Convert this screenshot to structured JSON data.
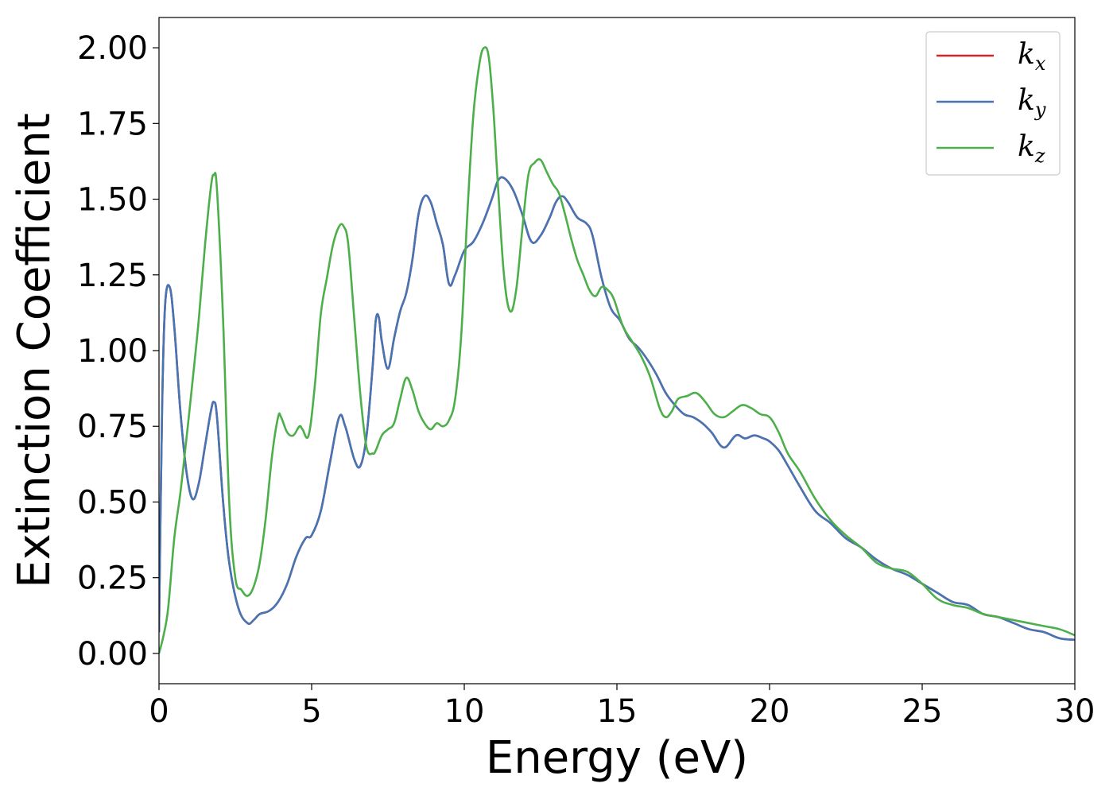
{
  "chart_data": {
    "type": "line",
    "title": "",
    "xlabel": "Energy (eV)",
    "ylabel": "Extinction Coefficient",
    "xlim": [
      0,
      30
    ],
    "ylim": [
      -0.1,
      2.1
    ],
    "xticks": [
      0,
      5,
      10,
      15,
      20,
      25,
      30
    ],
    "xtick_labels": [
      "0",
      "5",
      "10",
      "15",
      "20",
      "25",
      "30"
    ],
    "yticks": [
      0,
      0.25,
      0.5,
      0.75,
      1.0,
      1.25,
      1.5,
      1.75,
      2.0
    ],
    "ytick_labels": [
      "0.00",
      "0.25",
      "0.50",
      "0.75",
      "1.00",
      "1.25",
      "1.50",
      "1.75",
      "2.00"
    ],
    "grid": false,
    "legend_position": "top-right",
    "series": [
      {
        "name": "k_x",
        "label_base": "k",
        "label_sub": "x",
        "color": "#d62728",
        "x": [
          0,
          0.1,
          0.2,
          0.35,
          0.5,
          0.7,
          0.9,
          1.1,
          1.3,
          1.5,
          1.7,
          1.8,
          1.9,
          2.1,
          2.3,
          2.6,
          2.9,
          3.1,
          3.3,
          3.6,
          3.9,
          4.2,
          4.5,
          4.8,
          5.0,
          5.3,
          5.6,
          5.9,
          6.1,
          6.4,
          6.6,
          6.8,
          7.0,
          7.1,
          7.2,
          7.3,
          7.5,
          7.7,
          7.9,
          8.1,
          8.3,
          8.5,
          8.7,
          8.9,
          9.1,
          9.3,
          9.5,
          9.7,
          10.0,
          10.3,
          10.6,
          10.9,
          11.1,
          11.3,
          11.6,
          11.9,
          12.2,
          12.5,
          12.8,
          13.0,
          13.2,
          13.4,
          13.7,
          14.0,
          14.2,
          14.5,
          14.8,
          15.1,
          15.4,
          15.7,
          16.0,
          16.3,
          16.6,
          16.9,
          17.2,
          17.5,
          17.8,
          18.1,
          18.5,
          18.9,
          19.2,
          19.5,
          19.8,
          20.0,
          20.3,
          20.6,
          21.0,
          21.5,
          22.0,
          22.5,
          23.0,
          23.5,
          24.0,
          24.5,
          25.0,
          25.5,
          26.0,
          26.5,
          27.0,
          27.5,
          28.0,
          28.5,
          29.0,
          29.5,
          30.0
        ],
        "y": [
          0.07,
          0.8,
          1.15,
          1.21,
          1.08,
          0.8,
          0.6,
          0.51,
          0.56,
          0.68,
          0.8,
          0.83,
          0.78,
          0.5,
          0.3,
          0.15,
          0.1,
          0.11,
          0.13,
          0.14,
          0.17,
          0.23,
          0.32,
          0.38,
          0.39,
          0.47,
          0.63,
          0.78,
          0.75,
          0.64,
          0.62,
          0.72,
          0.95,
          1.1,
          1.11,
          1.03,
          0.94,
          1.04,
          1.13,
          1.19,
          1.3,
          1.45,
          1.51,
          1.49,
          1.42,
          1.35,
          1.22,
          1.25,
          1.33,
          1.36,
          1.42,
          1.5,
          1.56,
          1.57,
          1.53,
          1.45,
          1.36,
          1.38,
          1.44,
          1.49,
          1.51,
          1.49,
          1.44,
          1.42,
          1.38,
          1.24,
          1.14,
          1.1,
          1.04,
          1.01,
          0.97,
          0.92,
          0.86,
          0.82,
          0.79,
          0.78,
          0.76,
          0.73,
          0.68,
          0.72,
          0.71,
          0.72,
          0.71,
          0.7,
          0.67,
          0.62,
          0.55,
          0.47,
          0.43,
          0.38,
          0.35,
          0.31,
          0.28,
          0.26,
          0.23,
          0.2,
          0.17,
          0.16,
          0.13,
          0.12,
          0.1,
          0.08,
          0.07,
          0.05,
          0.045
        ]
      },
      {
        "name": "k_y",
        "label_base": "k",
        "label_sub": "y",
        "color": "#4575b4",
        "x": [
          0,
          0.1,
          0.2,
          0.35,
          0.5,
          0.7,
          0.9,
          1.1,
          1.3,
          1.5,
          1.7,
          1.8,
          1.9,
          2.1,
          2.3,
          2.6,
          2.9,
          3.1,
          3.3,
          3.6,
          3.9,
          4.2,
          4.5,
          4.8,
          5.0,
          5.3,
          5.6,
          5.9,
          6.1,
          6.4,
          6.6,
          6.8,
          7.0,
          7.1,
          7.2,
          7.3,
          7.5,
          7.7,
          7.9,
          8.1,
          8.3,
          8.5,
          8.7,
          8.9,
          9.1,
          9.3,
          9.5,
          9.7,
          10.0,
          10.3,
          10.6,
          10.9,
          11.1,
          11.3,
          11.6,
          11.9,
          12.2,
          12.5,
          12.8,
          13.0,
          13.2,
          13.4,
          13.7,
          14.0,
          14.2,
          14.5,
          14.8,
          15.1,
          15.4,
          15.7,
          16.0,
          16.3,
          16.6,
          16.9,
          17.2,
          17.5,
          17.8,
          18.1,
          18.5,
          18.9,
          19.2,
          19.5,
          19.8,
          20.0,
          20.3,
          20.6,
          21.0,
          21.5,
          22.0,
          22.5,
          23.0,
          23.5,
          24.0,
          24.5,
          25.0,
          25.5,
          26.0,
          26.5,
          27.0,
          27.5,
          28.0,
          28.5,
          29.0,
          29.5,
          30.0
        ],
        "y": [
          0.07,
          0.8,
          1.15,
          1.21,
          1.08,
          0.8,
          0.6,
          0.51,
          0.56,
          0.68,
          0.8,
          0.83,
          0.78,
          0.5,
          0.3,
          0.15,
          0.1,
          0.11,
          0.13,
          0.14,
          0.17,
          0.23,
          0.32,
          0.38,
          0.39,
          0.47,
          0.63,
          0.78,
          0.75,
          0.64,
          0.62,
          0.72,
          0.95,
          1.1,
          1.11,
          1.03,
          0.94,
          1.04,
          1.13,
          1.19,
          1.3,
          1.45,
          1.51,
          1.49,
          1.42,
          1.35,
          1.22,
          1.25,
          1.33,
          1.36,
          1.42,
          1.5,
          1.56,
          1.57,
          1.53,
          1.45,
          1.36,
          1.38,
          1.44,
          1.49,
          1.51,
          1.49,
          1.44,
          1.42,
          1.38,
          1.24,
          1.14,
          1.1,
          1.04,
          1.01,
          0.97,
          0.92,
          0.86,
          0.82,
          0.79,
          0.78,
          0.76,
          0.73,
          0.68,
          0.72,
          0.71,
          0.72,
          0.71,
          0.7,
          0.67,
          0.62,
          0.55,
          0.47,
          0.43,
          0.38,
          0.35,
          0.31,
          0.28,
          0.26,
          0.23,
          0.2,
          0.17,
          0.16,
          0.13,
          0.12,
          0.1,
          0.08,
          0.07,
          0.05,
          0.045
        ]
      },
      {
        "name": "k_z",
        "label_base": "k",
        "label_sub": "z",
        "color": "#4daf4a",
        "x": [
          0,
          0.15,
          0.3,
          0.5,
          0.7,
          0.9,
          1.1,
          1.3,
          1.5,
          1.7,
          1.8,
          1.9,
          2.1,
          2.3,
          2.5,
          2.7,
          2.9,
          3.1,
          3.3,
          3.5,
          3.7,
          3.9,
          4.0,
          4.2,
          4.4,
          4.6,
          4.7,
          4.9,
          5.1,
          5.3,
          5.5,
          5.7,
          5.9,
          6.05,
          6.2,
          6.4,
          6.6,
          6.8,
          7.0,
          7.1,
          7.3,
          7.5,
          7.7,
          7.9,
          8.1,
          8.3,
          8.5,
          8.7,
          8.9,
          9.1,
          9.3,
          9.5,
          9.7,
          9.9,
          10.1,
          10.3,
          10.5,
          10.65,
          10.8,
          10.95,
          11.1,
          11.3,
          11.5,
          11.7,
          11.9,
          12.1,
          12.3,
          12.5,
          12.7,
          12.9,
          13.1,
          13.3,
          13.5,
          13.7,
          13.9,
          14.1,
          14.3,
          14.5,
          14.7,
          14.9,
          15.2,
          15.5,
          15.8,
          16.1,
          16.4,
          16.6,
          16.8,
          17.0,
          17.3,
          17.6,
          17.9,
          18.2,
          18.5,
          18.8,
          19.1,
          19.4,
          19.7,
          20.0,
          20.3,
          20.6,
          21.0,
          21.5,
          22.0,
          22.5,
          23.0,
          23.5,
          24.0,
          24.5,
          25.0,
          25.5,
          26.0,
          26.5,
          27.0,
          27.5,
          28.0,
          28.5,
          29.0,
          29.5,
          30.0
        ],
        "y": [
          0.0,
          0.06,
          0.15,
          0.38,
          0.53,
          0.71,
          0.9,
          1.1,
          1.34,
          1.54,
          1.58,
          1.53,
          1.1,
          0.5,
          0.25,
          0.21,
          0.19,
          0.22,
          0.3,
          0.45,
          0.65,
          0.78,
          0.78,
          0.73,
          0.72,
          0.75,
          0.74,
          0.72,
          0.88,
          1.12,
          1.24,
          1.35,
          1.41,
          1.41,
          1.35,
          1.1,
          0.85,
          0.68,
          0.66,
          0.67,
          0.72,
          0.74,
          0.76,
          0.84,
          0.91,
          0.87,
          0.8,
          0.76,
          0.74,
          0.76,
          0.75,
          0.77,
          0.84,
          1.05,
          1.45,
          1.78,
          1.95,
          2.0,
          1.97,
          1.8,
          1.55,
          1.25,
          1.13,
          1.2,
          1.4,
          1.58,
          1.62,
          1.63,
          1.59,
          1.55,
          1.52,
          1.45,
          1.37,
          1.3,
          1.25,
          1.2,
          1.18,
          1.21,
          1.2,
          1.17,
          1.08,
          1.03,
          0.98,
          0.91,
          0.81,
          0.78,
          0.8,
          0.84,
          0.85,
          0.86,
          0.83,
          0.79,
          0.78,
          0.8,
          0.82,
          0.81,
          0.79,
          0.78,
          0.73,
          0.66,
          0.6,
          0.51,
          0.44,
          0.39,
          0.35,
          0.3,
          0.28,
          0.27,
          0.23,
          0.18,
          0.16,
          0.15,
          0.13,
          0.12,
          0.11,
          0.1,
          0.09,
          0.08,
          0.06
        ]
      }
    ]
  }
}
